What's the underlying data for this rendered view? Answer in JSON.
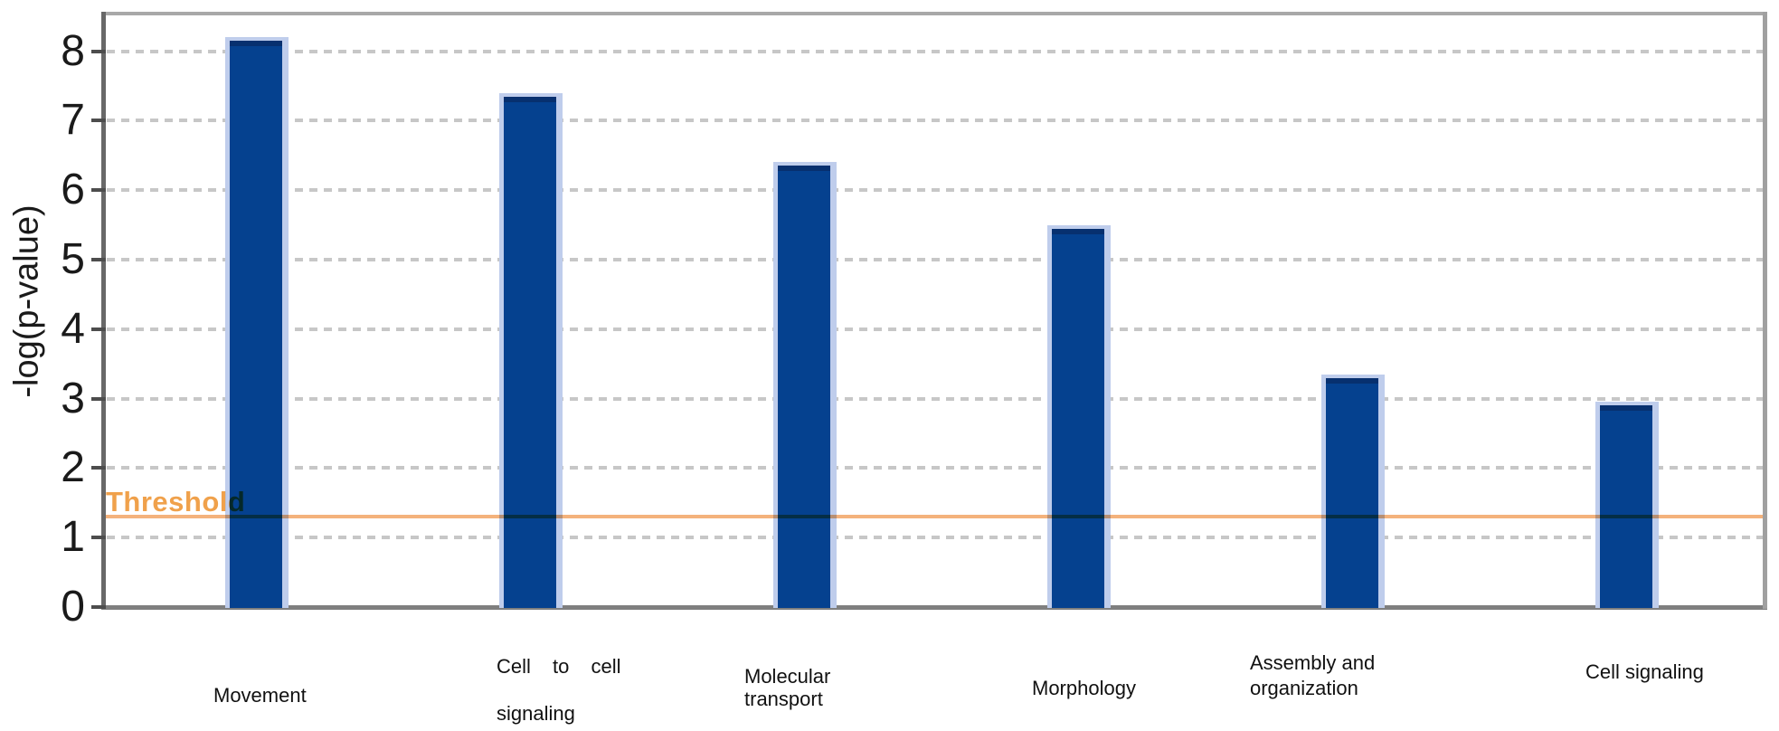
{
  "chart_data": {
    "type": "bar",
    "title": "",
    "xlabel": "",
    "ylabel": "-log(p-value)",
    "categories": [
      "Movement",
      "Cell to cell signaling",
      "Molecular transport",
      "Morphology",
      "Assembly and organization",
      "Cell signaling"
    ],
    "values": [
      8.2,
      7.4,
      6.4,
      5.5,
      3.35,
      2.95
    ],
    "yticks": [
      0,
      1,
      2,
      3,
      4,
      5,
      6,
      7,
      8
    ],
    "ylim": [
      0,
      8.6
    ],
    "grid": "horizontal-dashed",
    "legend_position": "none",
    "threshold": {
      "label": "Threshold",
      "value": 1.3
    },
    "category_label_lines": [
      [
        "Movement"
      ],
      [
        "Cell to cell",
        "signaling"
      ],
      [
        "Molecular",
        "transport"
      ],
      [
        "Morphology"
      ],
      [
        "Assembly and",
        "organization"
      ],
      [
        "Cell signaling"
      ]
    ],
    "colors": {
      "bar_fill": "#05418F",
      "bar_top_edge": "#07306F",
      "bar_highlight_border": "#BFCDEC",
      "threshold_line": "#F4B27C",
      "threshold_text": "#F0A14B",
      "gridline": "#C7C7C7",
      "axis_line": "#7F7F7F",
      "text": "#1A1A1A"
    }
  }
}
